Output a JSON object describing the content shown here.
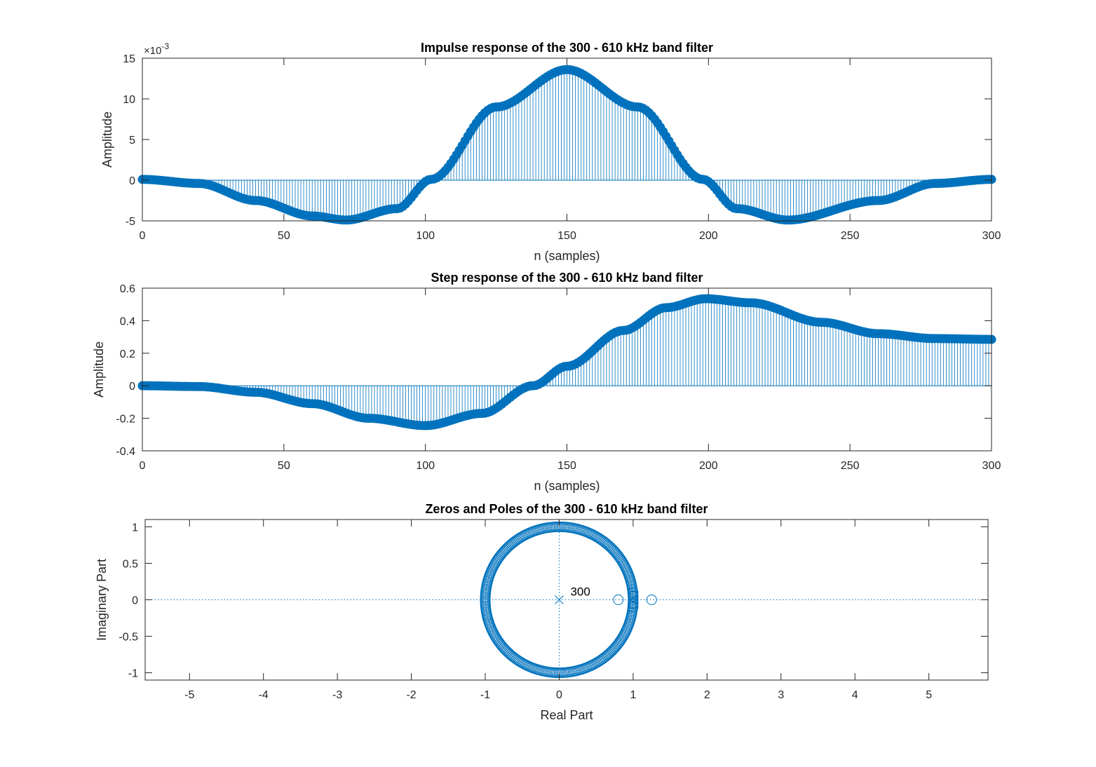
{
  "colors": {
    "series": "#0072BD",
    "axis": "#262626",
    "background": "#ffffff"
  },
  "chart_data": [
    {
      "type": "stem",
      "title": "Impulse response of the 300 - 610 kHz band filter",
      "xlabel": "n (samples)",
      "ylabel": "Amplitude",
      "y_exponent_label": "×10",
      "y_exponent_power": "-3",
      "xlim": [
        0,
        300
      ],
      "ylim": [
        -5,
        15
      ],
      "y_scale_factor": 0.001,
      "xticks": [
        "0",
        "50",
        "100",
        "150",
        "200",
        "250",
        "300"
      ],
      "yticks": [
        "-5",
        "0",
        "5",
        "10",
        "15"
      ],
      "n": 301,
      "curve_samples_x": [
        0,
        20,
        40,
        60,
        72,
        90,
        102,
        125,
        150,
        175,
        198,
        210,
        228,
        260,
        280,
        300
      ],
      "curve_samples_y": [
        0.0001,
        -0.0004,
        -0.0025,
        -0.0044,
        -0.0049,
        -0.0035,
        0.0001,
        0.009,
        0.0136,
        0.009,
        0.0001,
        -0.0035,
        -0.0049,
        -0.0025,
        -0.0004,
        0.0001
      ]
    },
    {
      "type": "stem",
      "title": "Step response of the 300 - 610 kHz band filter",
      "xlabel": "n (samples)",
      "ylabel": "Amplitude",
      "xlim": [
        0,
        300
      ],
      "ylim": [
        -0.4,
        0.6
      ],
      "xticks": [
        "0",
        "50",
        "100",
        "150",
        "200",
        "250",
        "300"
      ],
      "yticks": [
        "-0.4",
        "-0.2",
        "0",
        "0.2",
        "0.4",
        "0.6"
      ],
      "n": 301,
      "curve_samples_x": [
        0,
        20,
        40,
        60,
        80,
        100,
        120,
        138,
        150,
        170,
        185,
        199,
        215,
        240,
        260,
        280,
        300
      ],
      "curve_samples_y": [
        0,
        -0.005,
        -0.04,
        -0.11,
        -0.2,
        -0.245,
        -0.17,
        0,
        0.12,
        0.34,
        0.48,
        0.535,
        0.51,
        0.39,
        0.32,
        0.29,
        0.285
      ]
    },
    {
      "type": "scatter",
      "title": "Zeros and Poles of the 300 - 610 kHz band filter",
      "xlabel": "Real Part",
      "ylabel": "Imaginary Part",
      "xlim": [
        -5.6,
        5.8
      ],
      "ylim": [
        -1.1,
        1.1
      ],
      "xticks": [
        "-5",
        "-4",
        "-3",
        "-2",
        "-1",
        "0",
        "1",
        "2",
        "3",
        "4",
        "5"
      ],
      "yticks": [
        "-1",
        "-0.5",
        "0",
        "0.5",
        "1"
      ],
      "unit_circle_zeros": 296,
      "real_zeros": [
        0.8,
        1.0,
        1.0,
        1.25
      ],
      "near_one_zeros": [
        [
          1.0,
          0.1
        ],
        [
          1.0,
          -0.1
        ],
        [
          1.0,
          0.05
        ],
        [
          1.0,
          -0.05
        ]
      ],
      "poles": [
        [
          0,
          0
        ]
      ],
      "pole_multiplicity_label": "300"
    }
  ]
}
